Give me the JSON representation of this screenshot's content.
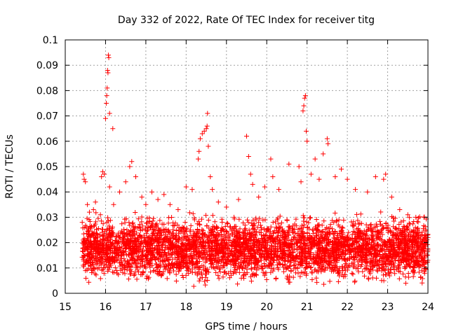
{
  "chart_data": {
    "type": "scatter",
    "title": "Day 332 of 2022, Rate Of TEC Index for receiver titg",
    "xlabel": "GPS time / hours",
    "ylabel": "ROTI / TECUs",
    "xlim": [
      15,
      24
    ],
    "ylim": [
      0,
      0.1
    ],
    "xticks": [
      "15",
      "16",
      "17",
      "18",
      "19",
      "20",
      "21",
      "22",
      "23",
      "24"
    ],
    "yticks": [
      "0",
      "0.01",
      "0.02",
      "0.03",
      "0.04",
      "0.05",
      "0.06",
      "0.07",
      "0.08",
      "0.09",
      "0.1"
    ],
    "grid": true,
    "marker": "+",
    "color": "#ff0000",
    "series": [
      {
        "points": [
          [
            15.45,
            0.047
          ],
          [
            15.47,
            0.045
          ],
          [
            15.5,
            0.044
          ],
          [
            15.55,
            0.035
          ],
          [
            15.6,
            0.032
          ],
          [
            15.7,
            0.033
          ],
          [
            15.75,
            0.036
          ],
          [
            15.9,
            0.046
          ],
          [
            15.93,
            0.048
          ],
          [
            15.97,
            0.047
          ],
          [
            16.0,
            0.069
          ],
          [
            16.02,
            0.075
          ],
          [
            16.03,
            0.078
          ],
          [
            16.04,
            0.081
          ],
          [
            16.05,
            0.088
          ],
          [
            16.06,
            0.087
          ],
          [
            16.07,
            0.094
          ],
          [
            16.08,
            0.093
          ],
          [
            16.1,
            0.071
          ],
          [
            16.18,
            0.065
          ],
          [
            16.1,
            0.042
          ],
          [
            16.2,
            0.035
          ],
          [
            16.35,
            0.04
          ],
          [
            16.5,
            0.044
          ],
          [
            16.6,
            0.05
          ],
          [
            16.65,
            0.052
          ],
          [
            16.75,
            0.046
          ],
          [
            16.9,
            0.038
          ],
          [
            17.0,
            0.035
          ],
          [
            17.15,
            0.04
          ],
          [
            17.3,
            0.037
          ],
          [
            17.45,
            0.039
          ],
          [
            17.6,
            0.035
          ],
          [
            17.8,
            0.033
          ],
          [
            18.0,
            0.042
          ],
          [
            18.15,
            0.041
          ],
          [
            18.3,
            0.053
          ],
          [
            18.32,
            0.056
          ],
          [
            18.35,
            0.061
          ],
          [
            18.4,
            0.063
          ],
          [
            18.45,
            0.064
          ],
          [
            18.5,
            0.065
          ],
          [
            18.52,
            0.066
          ],
          [
            18.53,
            0.071
          ],
          [
            18.55,
            0.058
          ],
          [
            18.6,
            0.046
          ],
          [
            18.65,
            0.041
          ],
          [
            18.8,
            0.036
          ],
          [
            19.0,
            0.034
          ],
          [
            19.3,
            0.037
          ],
          [
            19.5,
            0.062
          ],
          [
            19.55,
            0.054
          ],
          [
            19.6,
            0.047
          ],
          [
            19.65,
            0.043
          ],
          [
            19.8,
            0.038
          ],
          [
            19.95,
            0.042
          ],
          [
            20.1,
            0.053
          ],
          [
            20.15,
            0.046
          ],
          [
            20.3,
            0.041
          ],
          [
            20.55,
            0.051
          ],
          [
            20.8,
            0.05
          ],
          [
            20.85,
            0.044
          ],
          [
            20.9,
            0.072
          ],
          [
            20.92,
            0.074
          ],
          [
            20.94,
            0.077
          ],
          [
            20.96,
            0.078
          ],
          [
            20.98,
            0.064
          ],
          [
            21.0,
            0.06
          ],
          [
            21.1,
            0.047
          ],
          [
            21.2,
            0.053
          ],
          [
            21.3,
            0.045
          ],
          [
            21.4,
            0.055
          ],
          [
            21.5,
            0.061
          ],
          [
            21.52,
            0.059
          ],
          [
            21.7,
            0.046
          ],
          [
            21.85,
            0.049
          ],
          [
            22.0,
            0.045
          ],
          [
            22.2,
            0.041
          ],
          [
            22.5,
            0.04
          ],
          [
            22.7,
            0.046
          ],
          [
            22.9,
            0.045
          ],
          [
            22.95,
            0.047
          ],
          [
            23.1,
            0.038
          ],
          [
            23.3,
            0.033
          ],
          [
            23.5,
            0.031
          ],
          [
            23.7,
            0.03
          ],
          [
            23.9,
            0.03
          ],
          [
            23.95,
            0.025
          ],
          [
            24.0,
            0.022
          ]
        ]
      }
    ],
    "band": {
      "x_start": 15.42,
      "x_end": 24.0,
      "y_low": 0.002,
      "y_high": 0.032,
      "density": 4200
    }
  }
}
